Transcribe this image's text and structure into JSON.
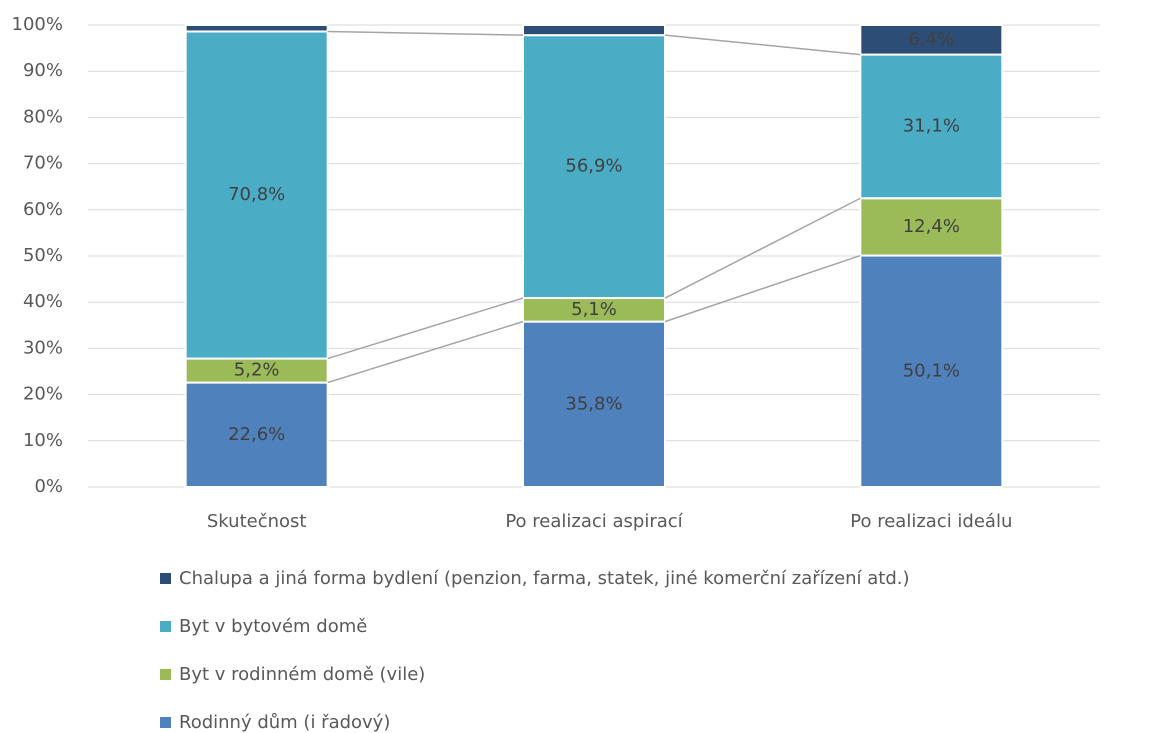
{
  "chart_data": {
    "type": "stacked_bar_100",
    "categories": [
      "Skutečnost",
      "Po realizaci aspirací",
      "Po realizaci ideálu"
    ],
    "series": [
      {
        "name": "Rodinný dům (i řadový)",
        "color": "#4f81bd",
        "values": [
          22.6,
          35.8,
          50.1
        ],
        "value_labels": [
          "22,6%",
          "35,8%",
          "50,1%"
        ]
      },
      {
        "name": "Byt v rodinném domě (vile)",
        "color": "#9bbb59",
        "values": [
          5.2,
          5.1,
          12.4
        ],
        "value_labels": [
          "5,2%",
          "5,1%",
          "12,4%"
        ]
      },
      {
        "name": "Byt v bytovém domě",
        "color": "#4bacc6",
        "values": [
          70.8,
          56.9,
          31.1
        ],
        "value_labels": [
          "70,8%",
          "56,9%",
          "31,1%"
        ]
      },
      {
        "name": "Chalupa a jiná forma bydlení (penzion, farma, statek, jiné komerční zařízení atd.)",
        "color": "#2c4d75",
        "values": [
          1.4,
          2.2,
          6.4
        ],
        "value_labels": [
          null,
          null,
          "6,4%"
        ]
      }
    ],
    "ylim": [
      0,
      100
    ],
    "yticks": [
      {
        "value": 0,
        "label": "0%"
      },
      {
        "value": 10,
        "label": "10%"
      },
      {
        "value": 20,
        "label": "20%"
      },
      {
        "value": 30,
        "label": "30%"
      },
      {
        "value": 40,
        "label": "40%"
      },
      {
        "value": 50,
        "label": "50%"
      },
      {
        "value": 60,
        "label": "60%"
      },
      {
        "value": 70,
        "label": "70%"
      },
      {
        "value": 80,
        "label": "80%"
      },
      {
        "value": 90,
        "label": "90%"
      },
      {
        "value": 100,
        "label": "100%"
      }
    ],
    "grid": true,
    "legend": "bottom",
    "series_lines": true
  }
}
